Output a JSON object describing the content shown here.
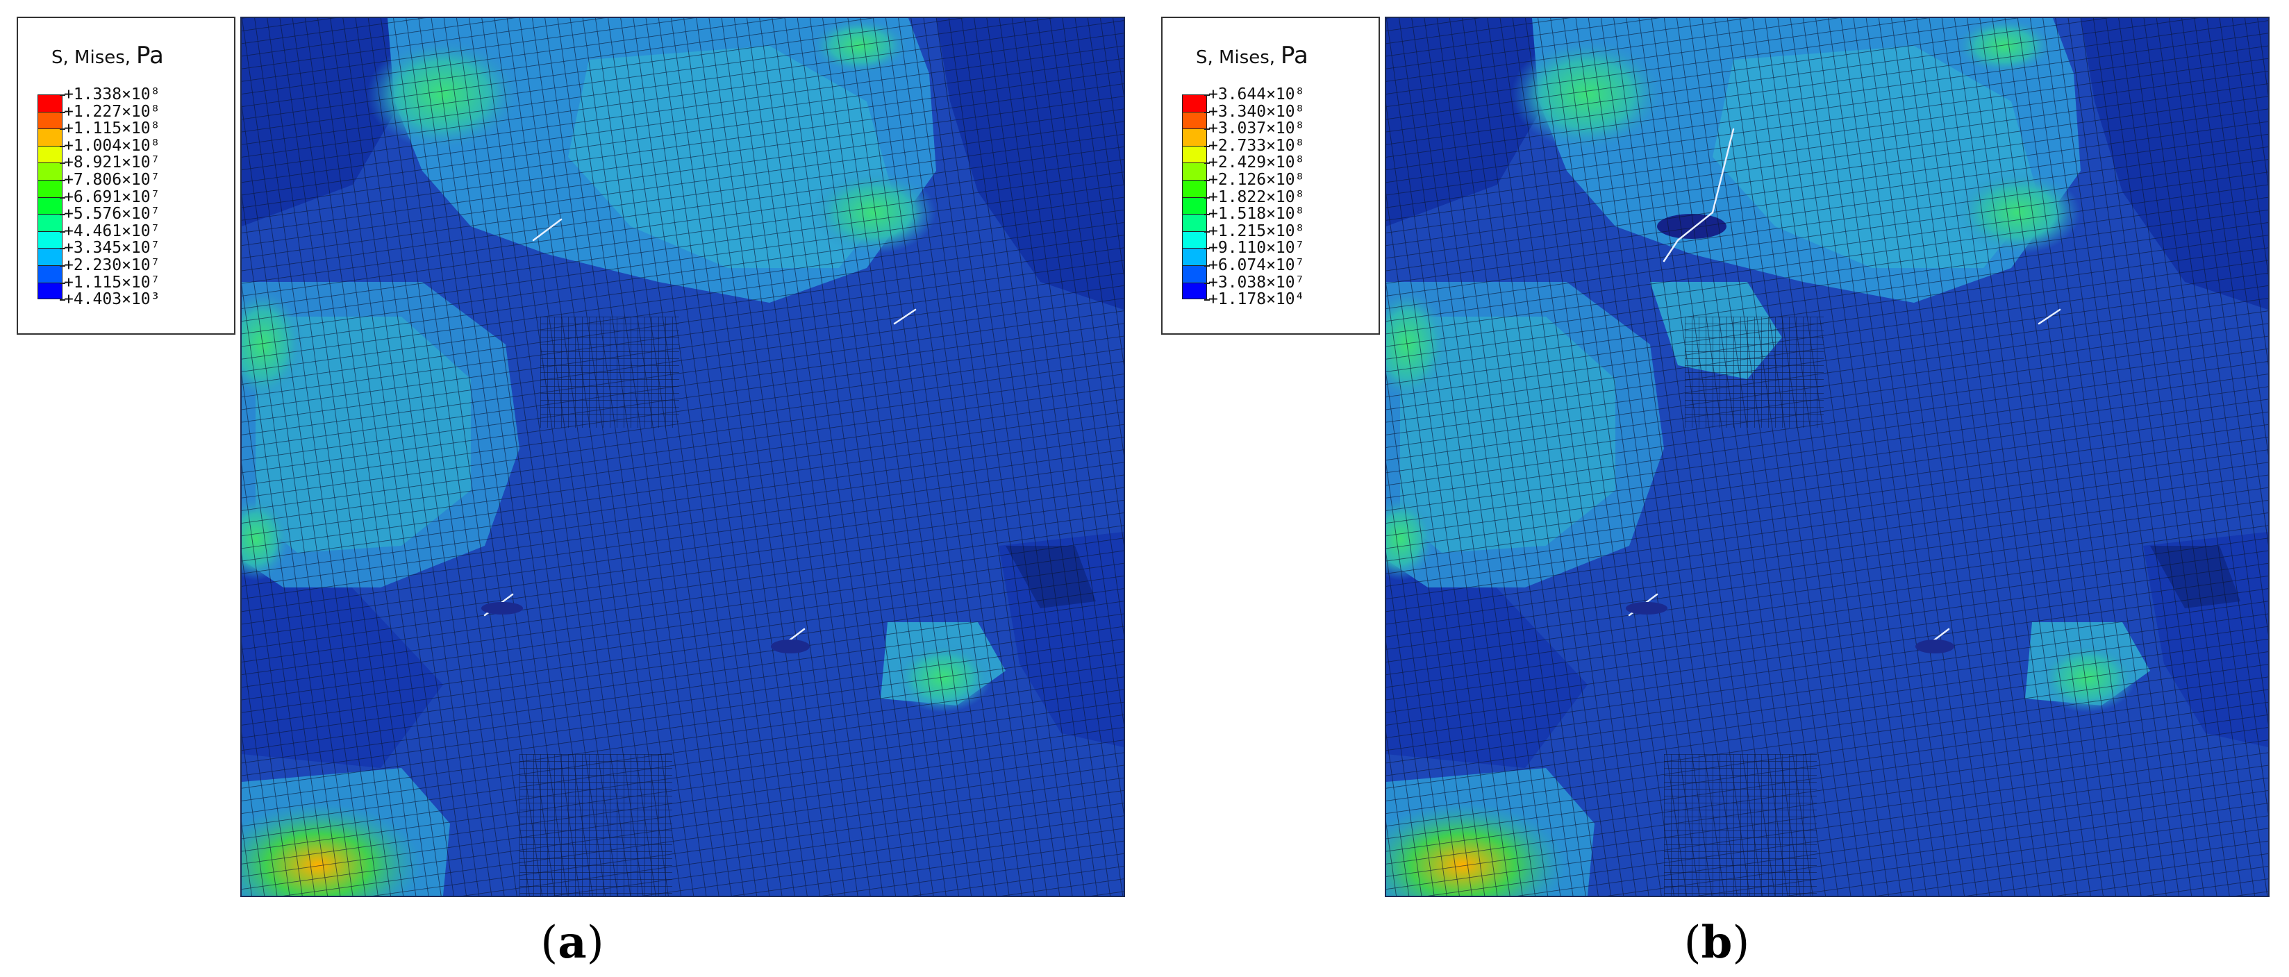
{
  "figure": {
    "panels": [
      {
        "id": "a",
        "caption_open": "(",
        "caption_letter": "a",
        "caption_close": ")",
        "legend": {
          "title": "S, Mises",
          "unit": "Pa",
          "labels": [
            "+1.338×10⁸",
            "+1.227×10⁸",
            "+1.115×10⁸",
            "+1.004×10⁸",
            "+8.921×10⁷",
            "+7.806×10⁷",
            "+6.691×10⁷",
            "+5.576×10⁷",
            "+4.461×10⁷",
            "+3.345×10⁷",
            "+2.230×10⁷",
            "+1.115×10⁷",
            "+4.403×10³"
          ]
        }
      },
      {
        "id": "b",
        "caption_open": "(",
        "caption_letter": "b",
        "caption_close": ")",
        "legend": {
          "title": "S, Mises",
          "unit": "Pa",
          "labels": [
            "+3.644×10⁸",
            "+3.340×10⁸",
            "+3.037×10⁸",
            "+2.733×10⁸",
            "+2.429×10⁸",
            "+2.126×10⁸",
            "+1.822×10⁸",
            "+1.518×10⁸",
            "+1.215×10⁸",
            "+9.110×10⁷",
            "+6.074×10⁷",
            "+3.038×10⁷",
            "+1.178×10⁴"
          ]
        }
      }
    ],
    "colorbar": [
      "#ff0000",
      "#ff5c00",
      "#ffb900",
      "#e7ff00",
      "#8bff00",
      "#2eff00",
      "#00ff2e",
      "#00ff8b",
      "#00ffe7",
      "#00b9ff",
      "#005cff",
      "#0000ff"
    ]
  }
}
